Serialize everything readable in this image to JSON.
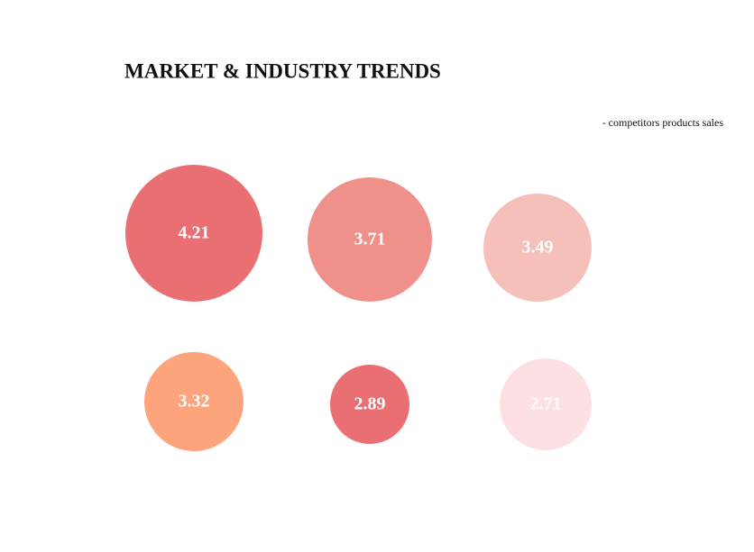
{
  "chart_data": {
    "type": "bubble",
    "title": "MARKET & INDUSTRY TRENDS",
    "subtitle": "- competitors products sales",
    "values": [
      4.21,
      3.71,
      3.49,
      3.32,
      2.89,
      2.71
    ],
    "colors": [
      "#ea6f73",
      "#ef918a",
      "#f5bfba",
      "#fea47c",
      "#ea6f73",
      "#fde0e4"
    ]
  }
}
